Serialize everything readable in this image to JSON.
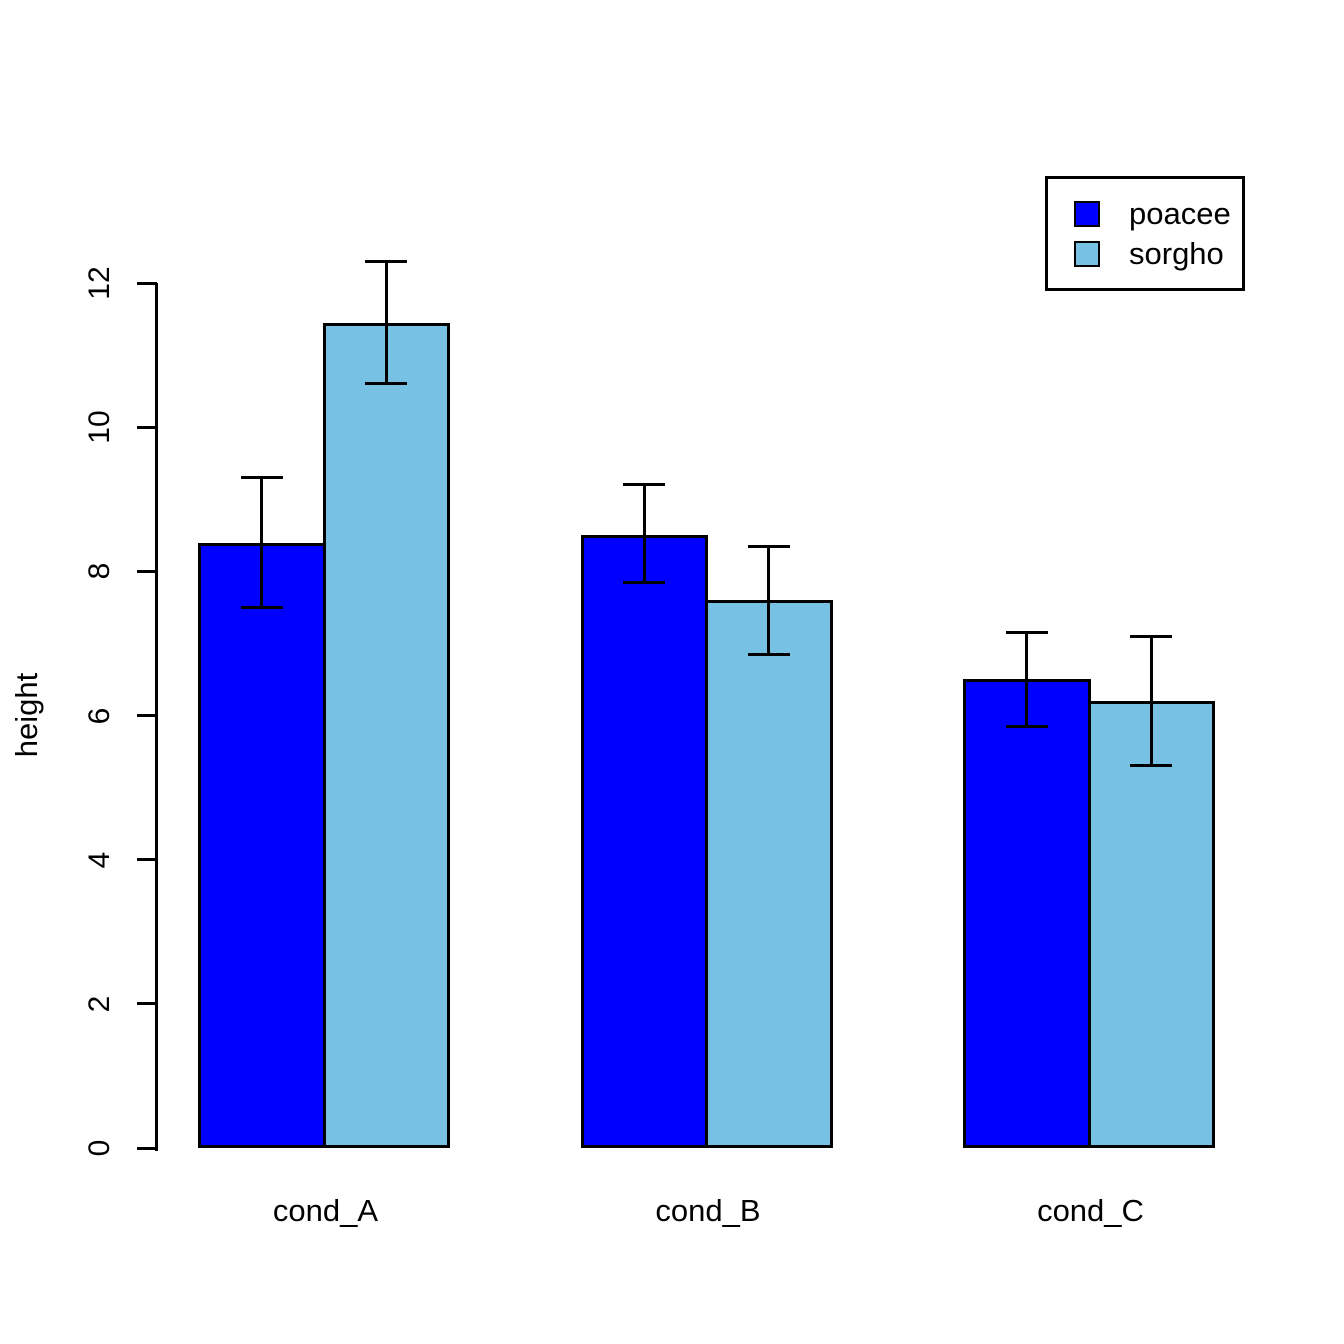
{
  "chart_data": {
    "type": "bar",
    "title": "",
    "xlabel": "",
    "ylabel": "height",
    "categories": [
      "cond_A",
      "cond_B",
      "cond_C"
    ],
    "series": [
      {
        "name": "poacee",
        "color": "#0000FF",
        "values": [
          8.4,
          8.5,
          6.5
        ],
        "error_upper": [
          9.3,
          9.2,
          7.15
        ],
        "error_lower": [
          7.5,
          7.85,
          5.85
        ]
      },
      {
        "name": "sorgho",
        "color": "#76C1E4",
        "values": [
          11.45,
          7.6,
          6.2
        ],
        "error_upper": [
          12.3,
          8.35,
          7.1
        ],
        "error_lower": [
          10.6,
          6.85,
          5.3
        ]
      }
    ],
    "yticks": [
      "0",
      "2",
      "4",
      "6",
      "8",
      "10",
      "12"
    ],
    "ylim": [
      0,
      12
    ],
    "grid": false,
    "legend_position": "topright",
    "bar_border_color": "#000000",
    "axis_color": "#000000"
  }
}
